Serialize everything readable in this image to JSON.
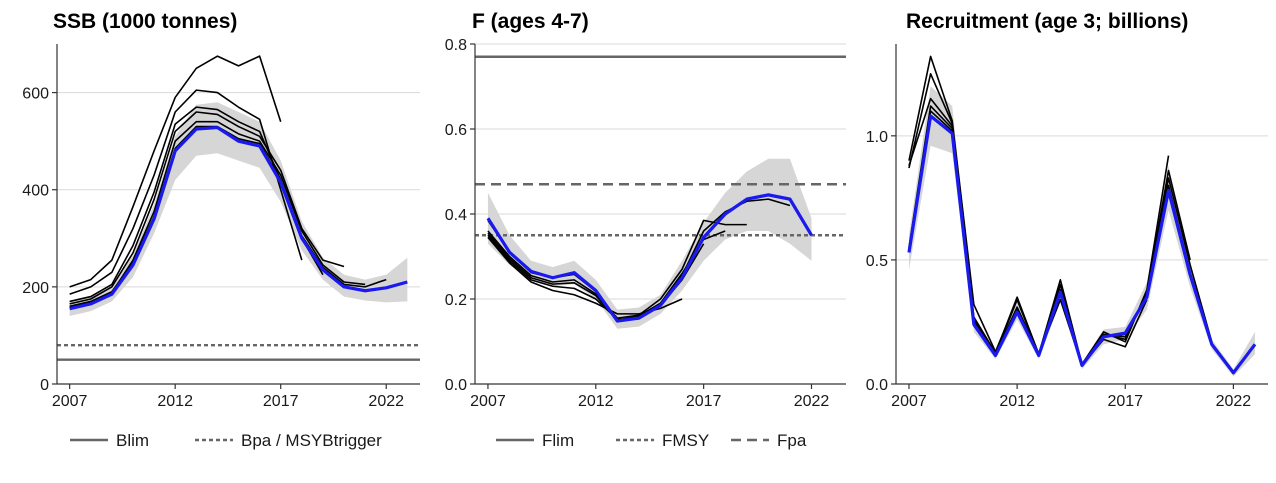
{
  "colors": {
    "band": "#d6d6d6",
    "retro": "#000000",
    "current": "#1a1aee",
    "ref": "#666666",
    "grid": "#d9d9d9"
  },
  "legends": [
    {
      "items": [
        {
          "label": "Blim",
          "style": "solid"
        },
        {
          "label": "Bpa / MSYBtrigger",
          "style": "dotted"
        }
      ]
    },
    {
      "items": [
        {
          "label": "Flim",
          "style": "solid"
        },
        {
          "label": "FMSY",
          "style": "dotted"
        },
        {
          "label": "Fpa",
          "style": "dashed"
        }
      ]
    }
  ],
  "chart_data": [
    {
      "type": "line",
      "title": "SSB (1000 tonnes)",
      "xlim": [
        2006.4,
        2023.6
      ],
      "ylim": [
        0,
        700
      ],
      "x_ticks": [
        2007,
        2012,
        2017,
        2022
      ],
      "y_ticks": [
        0,
        200,
        400,
        600
      ],
      "reference_lines": [
        {
          "name": "Blim",
          "value": 50,
          "style": "solid"
        },
        {
          "name": "Bpa / MSYBtrigger",
          "value": 80,
          "style": "dotted"
        }
      ],
      "confidence_band": {
        "x": [
          2007,
          2008,
          2009,
          2010,
          2011,
          2012,
          2013,
          2014,
          2015,
          2016,
          2017,
          2018,
          2019,
          2020,
          2021,
          2022,
          2023
        ],
        "lower": [
          140,
          150,
          170,
          220,
          310,
          420,
          470,
          475,
          460,
          445,
          375,
          275,
          215,
          180,
          172,
          168,
          170
        ],
        "upper": [
          170,
          180,
          200,
          265,
          370,
          510,
          575,
          580,
          560,
          540,
          460,
          335,
          260,
          225,
          215,
          225,
          260
        ]
      },
      "series": [
        {
          "role": "current",
          "x": [
            2007,
            2008,
            2009,
            2010,
            2011,
            2012,
            2013,
            2014,
            2015,
            2016,
            2017,
            2018,
            2019,
            2020,
            2021,
            2022,
            2023
          ],
          "values": [
            155,
            165,
            185,
            245,
            340,
            480,
            525,
            528,
            500,
            490,
            415,
            300,
            235,
            200,
            192,
            198,
            210
          ]
        },
        {
          "role": "retro",
          "x": [
            2007,
            2008,
            2009,
            2010,
            2011,
            2012,
            2013,
            2014,
            2015,
            2016,
            2017,
            2018,
            2019,
            2020,
            2021,
            2022
          ],
          "values": [
            160,
            170,
            190,
            250,
            345,
            485,
            530,
            530,
            505,
            495,
            420,
            305,
            240,
            205,
            200,
            215
          ]
        },
        {
          "role": "retro",
          "x": [
            2007,
            2008,
            2009,
            2010,
            2011,
            2012,
            2013,
            2014,
            2015,
            2016,
            2017,
            2018,
            2019,
            2020,
            2021
          ],
          "values": [
            158,
            168,
            188,
            255,
            355,
            500,
            540,
            540,
            515,
            500,
            430,
            315,
            245,
            210,
            205
          ]
        },
        {
          "role": "retro",
          "x": [
            2007,
            2008,
            2009,
            2010,
            2011,
            2012,
            2013,
            2014,
            2015,
            2016,
            2017,
            2018,
            2019,
            2020
          ],
          "values": [
            165,
            175,
            200,
            270,
            380,
            520,
            560,
            555,
            530,
            510,
            440,
            320,
            255,
            242
          ]
        },
        {
          "role": "retro",
          "x": [
            2007,
            2008,
            2009,
            2010,
            2011,
            2012,
            2013,
            2014,
            2015,
            2016,
            2017,
            2018,
            2019
          ],
          "values": [
            170,
            180,
            205,
            285,
            395,
            535,
            570,
            565,
            540,
            520,
            420,
            300,
            225
          ]
        },
        {
          "role": "retro",
          "x": [
            2007,
            2008,
            2009,
            2010,
            2011,
            2012,
            2013,
            2014,
            2015,
            2016,
            2017,
            2018
          ],
          "values": [
            185,
            200,
            230,
            320,
            430,
            560,
            605,
            600,
            570,
            545,
            400,
            255
          ]
        },
        {
          "role": "retro",
          "x": [
            2007,
            2008,
            2009,
            2010,
            2011,
            2012,
            2013,
            2014,
            2015,
            2016,
            2017
          ],
          "values": [
            200,
            215,
            255,
            365,
            480,
            590,
            650,
            675,
            655,
            675,
            540
          ]
        }
      ]
    },
    {
      "type": "line",
      "title": "F (ages 4-7)",
      "xlim": [
        2006.4,
        2023.6
      ],
      "ylim": [
        0,
        0.8
      ],
      "x_ticks": [
        2007,
        2012,
        2017,
        2022
      ],
      "y_ticks": [
        "0.0",
        "0.2",
        "0.4",
        "0.6",
        "0.8"
      ],
      "reference_lines": [
        {
          "name": "Flim",
          "value": 0.77,
          "style": "solid"
        },
        {
          "name": "FMSY",
          "value": 0.35,
          "style": "dotted"
        },
        {
          "name": "Fpa",
          "value": 0.47,
          "style": "dashed"
        }
      ],
      "confidence_band": {
        "x": [
          2007,
          2008,
          2009,
          2010,
          2011,
          2012,
          2013,
          2014,
          2015,
          2016,
          2017,
          2018,
          2019,
          2020,
          2021,
          2022
        ],
        "lower": [
          0.33,
          0.28,
          0.245,
          0.23,
          0.235,
          0.2,
          0.13,
          0.135,
          0.165,
          0.22,
          0.29,
          0.34,
          0.36,
          0.36,
          0.33,
          0.29
        ],
        "upper": [
          0.45,
          0.35,
          0.29,
          0.275,
          0.29,
          0.245,
          0.175,
          0.18,
          0.21,
          0.29,
          0.38,
          0.45,
          0.5,
          0.53,
          0.53,
          0.39
        ]
      },
      "series": [
        {
          "role": "current",
          "x": [
            2007,
            2008,
            2009,
            2010,
            2011,
            2012,
            2013,
            2014,
            2015,
            2016,
            2017,
            2018,
            2019,
            2020,
            2021,
            2022
          ],
          "values": [
            0.39,
            0.31,
            0.265,
            0.25,
            0.262,
            0.22,
            0.148,
            0.155,
            0.185,
            0.25,
            0.345,
            0.4,
            0.435,
            0.445,
            0.435,
            0.35
          ]
        },
        {
          "role": "retro",
          "x": [
            2007,
            2008,
            2009,
            2010,
            2011,
            2012,
            2013,
            2014,
            2015,
            2016,
            2017,
            2018,
            2019,
            2020,
            2021
          ],
          "values": [
            0.385,
            0.31,
            0.262,
            0.25,
            0.258,
            0.218,
            0.15,
            0.158,
            0.19,
            0.255,
            0.36,
            0.405,
            0.43,
            0.435,
            0.42
          ]
        },
        {
          "role": "retro",
          "x": [
            2007,
            2008,
            2009,
            2010,
            2011,
            2012,
            2013,
            2014,
            2015,
            2016,
            2017,
            2018,
            2019
          ],
          "values": [
            0.36,
            0.3,
            0.255,
            0.24,
            0.245,
            0.212,
            0.155,
            0.162,
            0.2,
            0.27,
            0.385,
            0.375,
            0.375
          ]
        },
        {
          "role": "retro",
          "x": [
            2007,
            2008,
            2009,
            2010,
            2011,
            2012,
            2013,
            2014,
            2015,
            2016,
            2017,
            2018
          ],
          "values": [
            0.355,
            0.295,
            0.25,
            0.235,
            0.238,
            0.208,
            0.15,
            0.16,
            0.19,
            0.26,
            0.34,
            0.36
          ]
        },
        {
          "role": "retro",
          "x": [
            2007,
            2008,
            2009,
            2010,
            2011,
            2012,
            2013,
            2014,
            2015,
            2016,
            2017
          ],
          "values": [
            0.35,
            0.29,
            0.245,
            0.23,
            0.225,
            0.2,
            0.152,
            0.155,
            0.185,
            0.245,
            0.33
          ]
        },
        {
          "role": "retro",
          "x": [
            2007,
            2008,
            2009,
            2010,
            2011,
            2012,
            2013,
            2014,
            2015,
            2016
          ],
          "values": [
            0.345,
            0.285,
            0.24,
            0.22,
            0.21,
            0.19,
            0.165,
            0.165,
            0.178,
            0.2
          ]
        }
      ]
    },
    {
      "type": "line",
      "title": "Recruitment (age 3; billions)",
      "xlim": [
        2006.4,
        2023.6
      ],
      "ylim": [
        0,
        1.37
      ],
      "x_ticks": [
        2007,
        2012,
        2017,
        2022
      ],
      "y_ticks": [
        "0.0",
        "0.5",
        "1.0"
      ],
      "reference_lines": [],
      "confidence_band": {
        "x": [
          2007,
          2008,
          2009,
          2010,
          2011,
          2012,
          2013,
          2014,
          2015,
          2016,
          2017,
          2018,
          2019,
          2020,
          2021,
          2022,
          2023
        ],
        "lower": [
          0.46,
          0.96,
          0.93,
          0.21,
          0.1,
          0.26,
          0.1,
          0.33,
          0.06,
          0.16,
          0.18,
          0.3,
          0.7,
          0.39,
          0.14,
          0.03,
          0.12
        ],
        "upper": [
          0.6,
          1.2,
          1.12,
          0.27,
          0.13,
          0.33,
          0.13,
          0.41,
          0.085,
          0.22,
          0.23,
          0.41,
          0.88,
          0.48,
          0.18,
          0.06,
          0.21
        ]
      },
      "series": [
        {
          "role": "current",
          "x": [
            2007,
            2008,
            2009,
            2010,
            2011,
            2012,
            2013,
            2014,
            2015,
            2016,
            2017,
            2018,
            2019,
            2020,
            2021,
            2022,
            2023
          ],
          "values": [
            0.53,
            1.08,
            1.01,
            0.24,
            0.115,
            0.29,
            0.115,
            0.37,
            0.075,
            0.19,
            0.205,
            0.35,
            0.78,
            0.44,
            0.16,
            0.045,
            0.16
          ]
        },
        {
          "role": "retro",
          "x": [
            2007,
            2008,
            2009,
            2010,
            2011,
            2012,
            2013,
            2014,
            2015,
            2016,
            2017,
            2018,
            2019,
            2020,
            2021,
            2022
          ],
          "values": [
            0.54,
            1.1,
            1.02,
            0.245,
            0.118,
            0.3,
            0.118,
            0.375,
            0.076,
            0.195,
            0.2,
            0.36,
            0.8,
            0.45,
            0.165,
            0.05
          ]
        },
        {
          "role": "retro",
          "x": [
            2007,
            2008,
            2009,
            2010,
            2011,
            2012,
            2013,
            2014,
            2015,
            2016,
            2017,
            2018,
            2019,
            2020,
            2021
          ],
          "values": [
            0.55,
            1.12,
            1.03,
            0.25,
            0.12,
            0.31,
            0.12,
            0.38,
            0.078,
            0.2,
            0.19,
            0.36,
            0.83,
            0.48,
            0.17
          ]
        },
        {
          "role": "retro",
          "x": [
            2007,
            2008,
            2009,
            2010,
            2011,
            2012,
            2013,
            2014,
            2015,
            2016,
            2017,
            2018,
            2019,
            2020
          ],
          "values": [
            0.88,
            1.15,
            1.04,
            0.26,
            0.12,
            0.34,
            0.12,
            0.4,
            0.08,
            0.2,
            0.18,
            0.37,
            0.86,
            0.5
          ]
        },
        {
          "role": "retro",
          "x": [
            2007,
            2008,
            2009,
            2010,
            2011,
            2012,
            2013,
            2014,
            2015,
            2016,
            2017,
            2018,
            2019
          ],
          "values": [
            0.87,
            1.25,
            1.05,
            0.27,
            0.125,
            0.35,
            0.12,
            0.42,
            0.08,
            0.21,
            0.17,
            0.38,
            0.92
          ]
        },
        {
          "role": "retro",
          "x": [
            2007,
            2008,
            2009,
            2010,
            2011,
            2012,
            2013,
            2014,
            2015,
            2016,
            2017,
            2018
          ],
          "values": [
            0.9,
            1.32,
            1.06,
            0.32,
            0.13,
            0.34,
            0.12,
            0.34,
            0.075,
            0.18,
            0.15,
            0.34
          ]
        }
      ]
    }
  ]
}
